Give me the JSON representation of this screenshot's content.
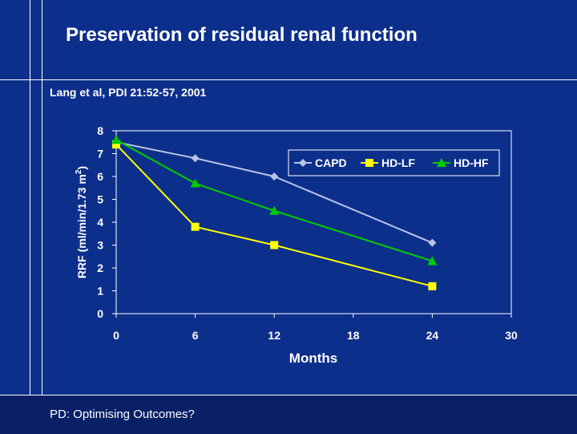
{
  "slide": {
    "title": "Preservation of residual renal function",
    "citation": "Lang et al, PDI 21:52-57, 2001",
    "footer": "PD: Optimising Outcomes?"
  },
  "chart_data": {
    "type": "line",
    "title": "",
    "xlabel": "Months",
    "ylabel": "RRF (ml/min/1.73 m",
    "ylabel_superscript": "2",
    "ylabel_suffix": ")",
    "xlim": [
      0,
      30
    ],
    "ylim": [
      0,
      8
    ],
    "x_ticks": [
      0,
      6,
      12,
      18,
      24,
      30
    ],
    "y_ticks": [
      0,
      1,
      2,
      3,
      4,
      5,
      6,
      7,
      8
    ],
    "x": [
      0,
      6,
      12,
      24
    ],
    "series": [
      {
        "name": "CAPD",
        "values": [
          7.5,
          6.8,
          6.0,
          3.1
        ],
        "color": "#b8c4e6",
        "marker": "diamond"
      },
      {
        "name": "HD-LF",
        "values": [
          7.4,
          3.8,
          3.0,
          1.2
        ],
        "color": "#ffff00",
        "marker": "square"
      },
      {
        "name": "HD-HF",
        "values": [
          7.6,
          5.7,
          4.5,
          2.3
        ],
        "color": "#00cc00",
        "marker": "triangle"
      }
    ],
    "legend_position": "top-right",
    "grid": false,
    "plot_background": "#0d2f8c",
    "axis_color": "#ffffff"
  }
}
